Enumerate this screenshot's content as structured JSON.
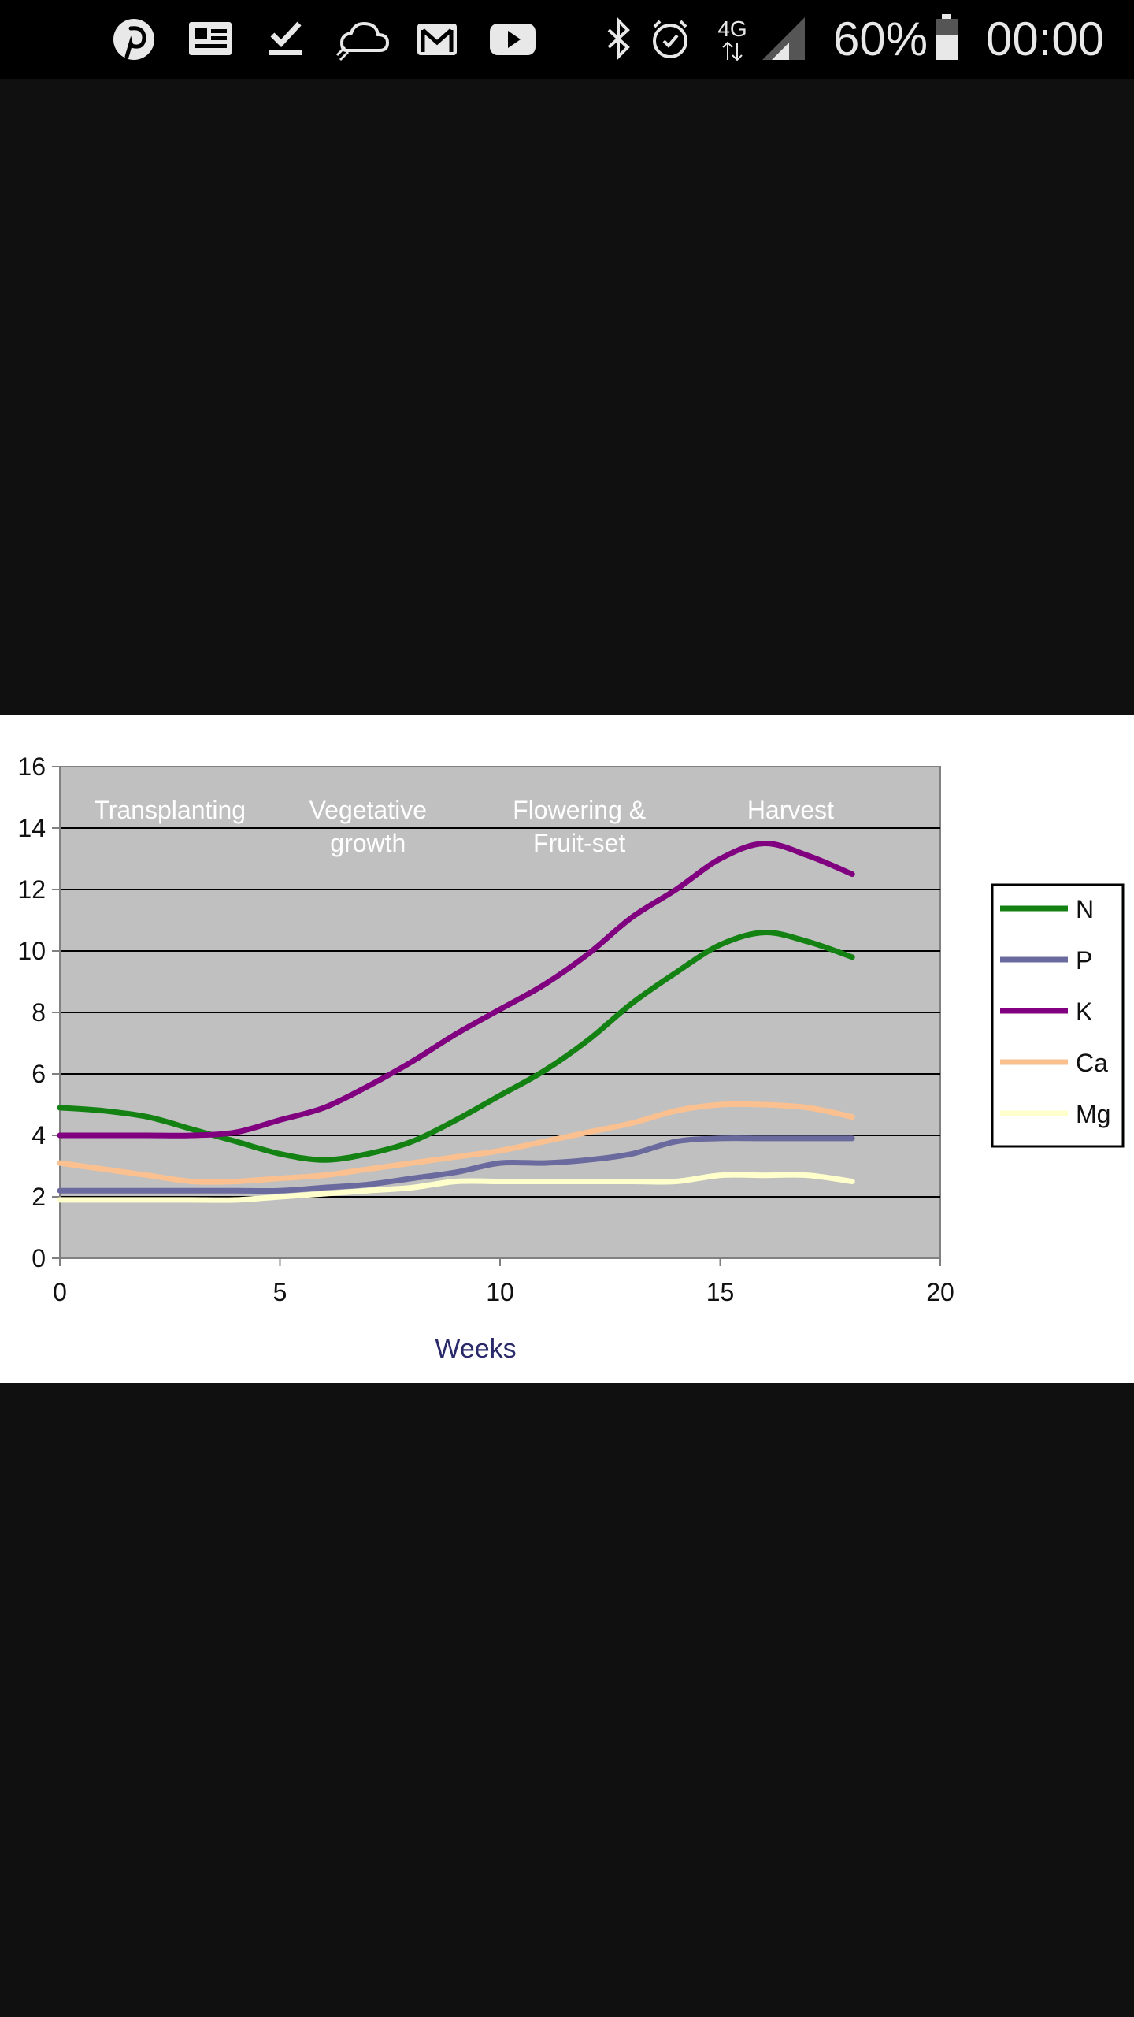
{
  "status_bar": {
    "notification_icons": [
      "pinterest-icon",
      "news-icon",
      "download-done-icon",
      "cloud-icon",
      "gmail-icon",
      "youtube-icon"
    ],
    "system_icons": [
      "bluetooth-icon",
      "alarm-icon",
      "network-4g-icon",
      "signal-icon",
      "battery-icon"
    ],
    "network_label": "4G",
    "battery_percent": "60%",
    "battery_level": 60,
    "time": "00:00"
  },
  "colors": {
    "plot_bg": "#c0c0c0",
    "N": "#138213",
    "P": "#6a6a9e",
    "K": "#800080",
    "Ca": "#fac090",
    "Mg": "#ffffcc"
  },
  "chart_data": {
    "type": "line",
    "title": "",
    "xlabel": "Weeks",
    "ylabel": "",
    "xlim": [
      0,
      20
    ],
    "ylim": [
      0,
      16
    ],
    "x_ticks": [
      "0",
      "5",
      "10",
      "15",
      "20"
    ],
    "y_ticks": [
      "0",
      "2",
      "4",
      "6",
      "8",
      "10",
      "12",
      "14",
      "16"
    ],
    "grid": true,
    "legend_position": "right",
    "stage_labels": [
      {
        "x": 2.5,
        "lines": [
          "Transplanting"
        ]
      },
      {
        "x": 7,
        "lines": [
          "Vegetative",
          "growth"
        ]
      },
      {
        "x": 11.8,
        "lines": [
          "Flowering &",
          "Fruit-set"
        ]
      },
      {
        "x": 16.6,
        "lines": [
          "Harvest"
        ]
      }
    ],
    "x": [
      0,
      1,
      2,
      3,
      4,
      5,
      6,
      7,
      8,
      9,
      10,
      11,
      12,
      13,
      14,
      15,
      16,
      17,
      18
    ],
    "series": [
      {
        "name": "N",
        "values": [
          4.9,
          4.8,
          4.6,
          4.2,
          3.8,
          3.4,
          3.2,
          3.4,
          3.8,
          4.5,
          5.3,
          6.1,
          7.1,
          8.3,
          9.3,
          10.2,
          10.6,
          10.3,
          9.8
        ]
      },
      {
        "name": "P",
        "values": [
          2.2,
          2.2,
          2.2,
          2.2,
          2.2,
          2.2,
          2.3,
          2.4,
          2.6,
          2.8,
          3.1,
          3.1,
          3.2,
          3.4,
          3.8,
          3.9,
          3.9,
          3.9,
          3.9
        ]
      },
      {
        "name": "K",
        "values": [
          4.0,
          4.0,
          4.0,
          4.0,
          4.1,
          4.5,
          4.9,
          5.6,
          6.4,
          7.3,
          8.1,
          8.9,
          9.9,
          11.1,
          12.0,
          13.0,
          13.5,
          13.1,
          12.5
        ]
      },
      {
        "name": "Ca",
        "values": [
          3.1,
          2.9,
          2.7,
          2.5,
          2.5,
          2.6,
          2.7,
          2.9,
          3.1,
          3.3,
          3.5,
          3.8,
          4.1,
          4.4,
          4.8,
          5.0,
          5.0,
          4.9,
          4.6
        ]
      },
      {
        "name": "Mg",
        "values": [
          1.9,
          1.9,
          1.9,
          1.9,
          1.9,
          2.0,
          2.1,
          2.2,
          2.3,
          2.5,
          2.5,
          2.5,
          2.5,
          2.5,
          2.5,
          2.7,
          2.7,
          2.7,
          2.5
        ]
      }
    ]
  }
}
